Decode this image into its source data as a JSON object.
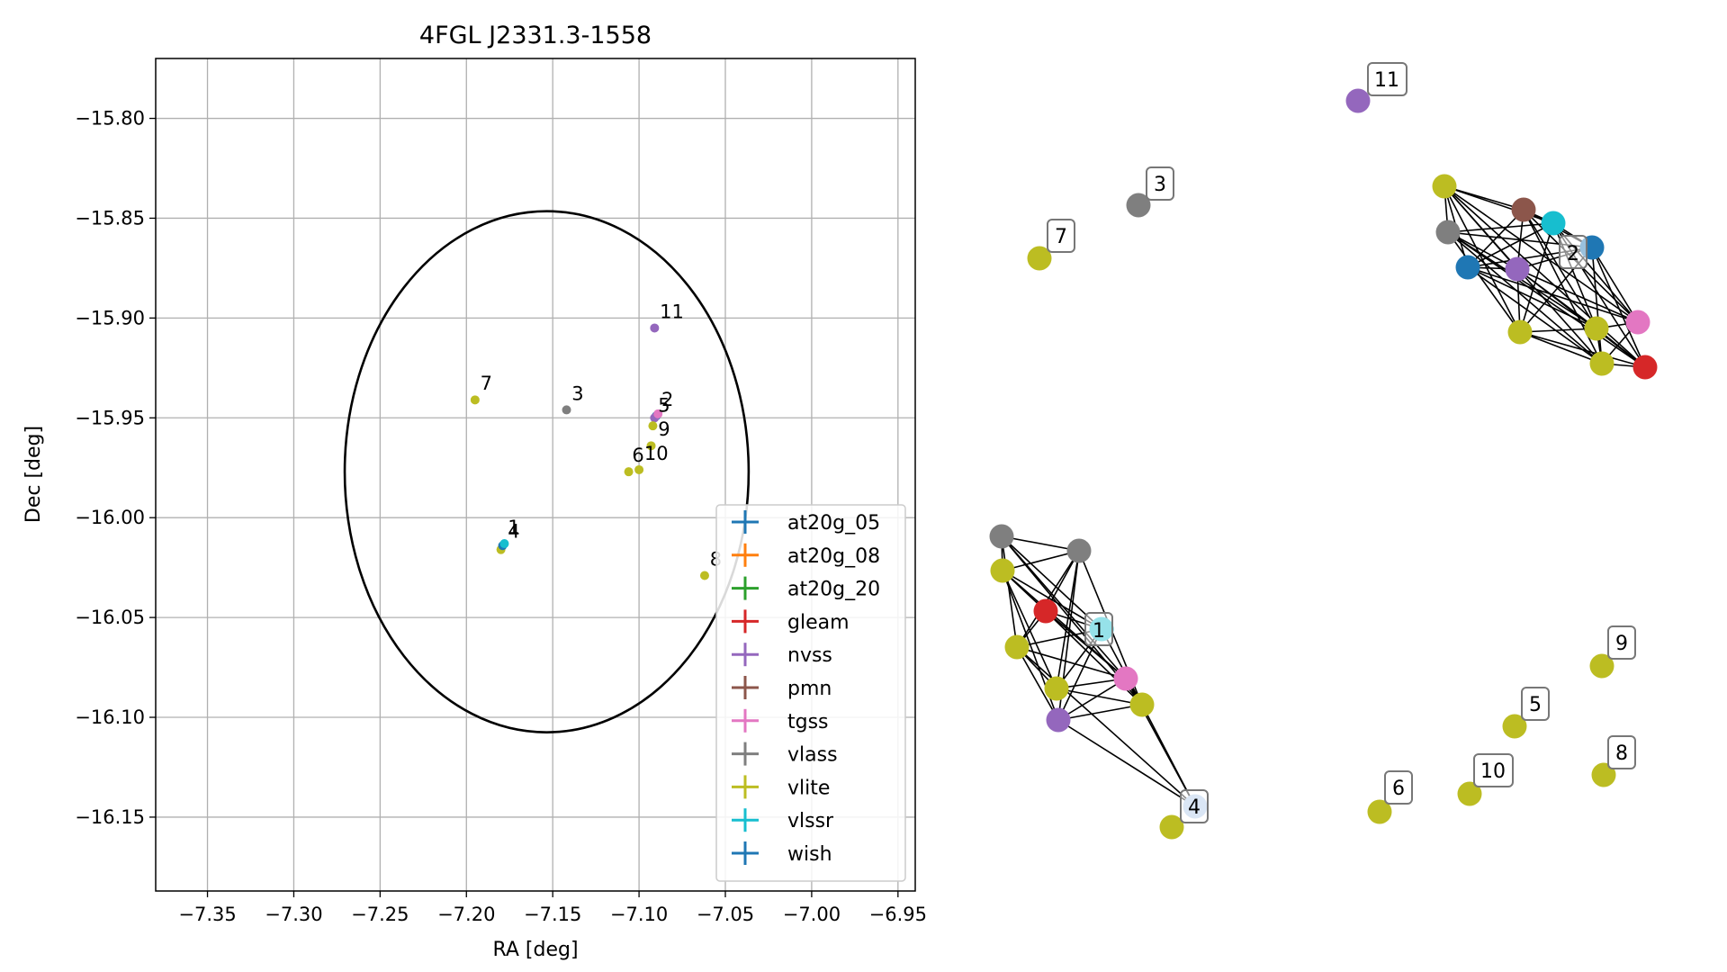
{
  "chart_data": [
    {
      "type": "scatter",
      "title": "4FGL J2331.3-1558",
      "xlabel": "RA [deg]",
      "ylabel": "Dec [deg]",
      "xlim": [
        -7.38,
        -6.94
      ],
      "ylim": [
        -16.187,
        -15.77
      ],
      "xticks": [
        "−7.35",
        "−7.30",
        "−7.25",
        "−7.20",
        "−7.15",
        "−7.10",
        "−7.05",
        "−7.00",
        "−6.95"
      ],
      "xtick_values": [
        -7.35,
        -7.3,
        -7.25,
        -7.2,
        -7.15,
        -7.1,
        -7.05,
        -7.0,
        -6.95
      ],
      "yticks": [
        "−15.80",
        "−15.85",
        "−15.90",
        "−15.95",
        "−16.00",
        "−16.05",
        "−16.10",
        "−16.15"
      ],
      "ytick_values": [
        -15.8,
        -15.85,
        -15.9,
        -15.95,
        -16.0,
        -16.05,
        -16.1,
        -16.15
      ],
      "grid": true,
      "legend_placement": "lower right",
      "ellipse": {
        "center_ra": -7.1535,
        "center_dec": -15.977,
        "radius_ra": 0.117,
        "radius_dec": 0.1305,
        "color": "#000000"
      },
      "legend": [
        {
          "name": "at20g_05",
          "color": "#1f77b4"
        },
        {
          "name": "at20g_08",
          "color": "#ff7f0e"
        },
        {
          "name": "at20g_20",
          "color": "#2ca02c"
        },
        {
          "name": "gleam",
          "color": "#d62728"
        },
        {
          "name": "nvss",
          "color": "#9467bd"
        },
        {
          "name": "pmn",
          "color": "#8c564b"
        },
        {
          "name": "tgss",
          "color": "#e377c2"
        },
        {
          "name": "vlass",
          "color": "#7f7f7f"
        },
        {
          "name": "vlite",
          "color": "#bcbd22"
        },
        {
          "name": "vlssr",
          "color": "#17becf"
        },
        {
          "name": "wish",
          "color": "#1f77b4"
        }
      ],
      "points": [
        {
          "ra": -7.18,
          "dec": -16.016,
          "color": "#bcbd22"
        },
        {
          "ra": -7.179,
          "dec": -16.014,
          "color": "#1f77b4"
        },
        {
          "ra": -7.178,
          "dec": -16.013,
          "color": "#17becf"
        },
        {
          "ra": -7.09,
          "dec": -15.949,
          "color": "#1f77b4"
        },
        {
          "ra": -7.091,
          "dec": -15.95,
          "color": "#9467bd"
        },
        {
          "ra": -7.089,
          "dec": -15.948,
          "color": "#e377c2"
        },
        {
          "ra": -7.142,
          "dec": -15.946,
          "color": "#7f7f7f"
        },
        {
          "ra": -7.091,
          "dec": -15.905,
          "color": "#9467bd"
        },
        {
          "ra": -7.195,
          "dec": -15.941,
          "color": "#bcbd22"
        },
        {
          "ra": -7.092,
          "dec": -15.954,
          "color": "#bcbd22"
        },
        {
          "ra": -7.093,
          "dec": -15.964,
          "color": "#bcbd22"
        },
        {
          "ra": -7.106,
          "dec": -15.977,
          "color": "#bcbd22"
        },
        {
          "ra": -7.1,
          "dec": -15.976,
          "color": "#bcbd22"
        },
        {
          "ra": -7.062,
          "dec": -16.029,
          "color": "#bcbd22"
        }
      ],
      "labels": [
        {
          "text": "1",
          "ra": -7.176,
          "dec": -16.008,
          "color": "#000000"
        },
        {
          "text": "4",
          "ra": -7.176,
          "dec": -16.01,
          "color": "#000000"
        },
        {
          "text": "2",
          "ra": -7.087,
          "dec": -15.944,
          "color": "#000000"
        },
        {
          "text": "5",
          "ra": -7.089,
          "dec": -15.947,
          "color": "#000000"
        },
        {
          "text": "3",
          "ra": -7.139,
          "dec": -15.941,
          "color": "#000000"
        },
        {
          "text": "11",
          "ra": -7.088,
          "dec": -15.9,
          "color": "#000000"
        },
        {
          "text": "7",
          "ra": -7.192,
          "dec": -15.936,
          "color": "#000000"
        },
        {
          "text": "9",
          "ra": -7.089,
          "dec": -15.959,
          "color": "#000000"
        },
        {
          "text": "6",
          "ra": -7.104,
          "dec": -15.972,
          "color": "#000000"
        },
        {
          "text": "10",
          "ra": -7.097,
          "dec": -15.971,
          "color": "#000000"
        },
        {
          "text": "8",
          "ra": -7.059,
          "dec": -16.024,
          "color": "#b0b0b0"
        }
      ]
    }
  ],
  "graph": {
    "node_labels": [
      "11",
      "3",
      "7",
      "2",
      "1",
      "4",
      "9",
      "5",
      "8",
      "10",
      "6"
    ]
  }
}
